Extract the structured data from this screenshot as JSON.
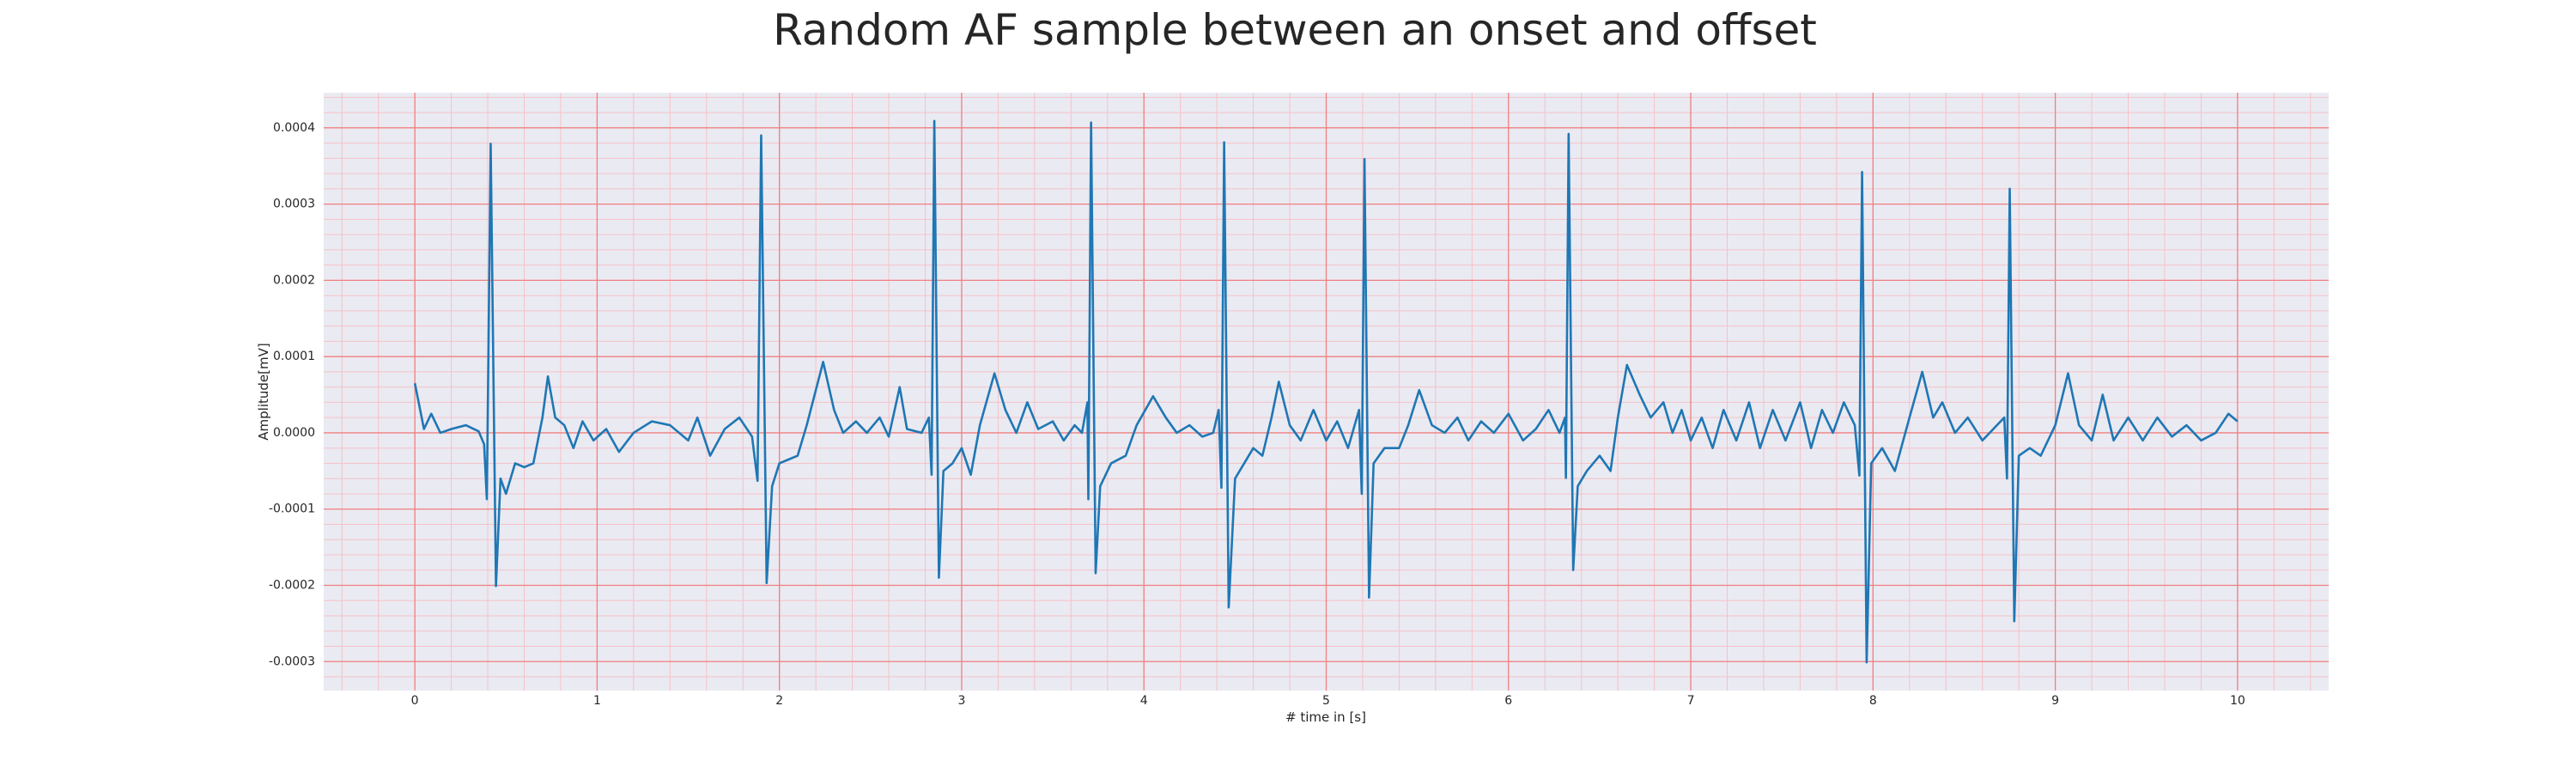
{
  "chart_data": {
    "type": "line",
    "title": "Random AF sample between an onset and offset",
    "xlabel": "# time in [s]",
    "ylabel": "Amplitude[mV]",
    "color": "#1f77b4",
    "background": "#eaeaf2",
    "grid": true,
    "grid_color": "#f08080",
    "minor_grid_color": "#f6c2c8",
    "minor_divisions": 5,
    "xlim": [
      -0.5,
      10.5
    ],
    "ylim": [
      -0.000338,
      0.000446
    ],
    "xticks": [
      0,
      1,
      2,
      3,
      4,
      5,
      6,
      7,
      8,
      9,
      10
    ],
    "yticks": [
      -0.0003,
      -0.0002,
      -0.0001,
      {
        "value": 0,
        "label": "0.0000"
      },
      0.0001,
      0.0002,
      0.0003,
      0.0004
    ],
    "x": [
      0,
      0.05,
      0.09,
      0.14,
      0.2,
      0.28,
      0.35,
      0.38,
      0.395,
      0.416,
      0.445,
      0.47,
      0.5,
      0.55,
      0.6,
      0.65,
      0.7,
      0.73,
      0.77,
      0.82,
      0.87,
      0.92,
      0.98,
      1.05,
      1.12,
      1.2,
      1.3,
      1.4,
      1.5,
      1.55,
      1.62,
      1.7,
      1.78,
      1.85,
      1.88,
      1.9,
      1.93,
      1.96,
      2.0,
      2.05,
      2.1,
      2.15,
      2.24,
      2.3,
      2.35,
      2.42,
      2.48,
      2.55,
      2.6,
      2.66,
      2.7,
      2.78,
      2.82,
      2.835,
      2.85,
      2.875,
      2.9,
      2.95,
      3.0,
      3.05,
      3.1,
      3.18,
      3.24,
      3.3,
      3.36,
      3.42,
      3.5,
      3.56,
      3.62,
      3.66,
      3.69,
      3.695,
      3.71,
      3.735,
      3.76,
      3.82,
      3.9,
      3.96,
      4.05,
      4.12,
      4.18,
      4.25,
      4.32,
      4.38,
      4.41,
      4.425,
      4.44,
      4.465,
      4.5,
      4.55,
      4.6,
      4.65,
      4.7,
      4.74,
      4.8,
      4.86,
      4.93,
      5.0,
      5.06,
      5.12,
      5.18,
      5.195,
      5.21,
      5.235,
      5.26,
      5.32,
      5.4,
      5.45,
      5.51,
      5.58,
      5.65,
      5.72,
      5.78,
      5.85,
      5.92,
      6.0,
      6.08,
      6.15,
      6.22,
      6.28,
      6.31,
      6.315,
      6.33,
      6.355,
      6.38,
      6.43,
      6.5,
      6.56,
      6.6,
      6.65,
      6.72,
      6.78,
      6.85,
      6.9,
      6.95,
      7.0,
      7.06,
      7.12,
      7.18,
      7.25,
      7.32,
      7.38,
      7.45,
      7.52,
      7.6,
      7.66,
      7.72,
      7.78,
      7.84,
      7.9,
      7.925,
      7.94,
      7.965,
      7.99,
      8.05,
      8.12,
      8.2,
      8.27,
      8.33,
      8.38,
      8.45,
      8.52,
      8.6,
      8.66,
      8.72,
      8.735,
      8.75,
      8.775,
      8.8,
      8.86,
      8.92,
      9.0,
      9.07,
      9.13,
      9.2,
      9.26,
      9.32,
      9.4,
      9.48,
      9.56,
      9.64,
      9.72,
      9.8,
      9.88,
      9.95,
      10.0
    ],
    "values": [
      6.5e-05,
      5e-06,
      2.5e-05,
      0,
      5e-06,
      1e-05,
      2e-06,
      -1.5e-05,
      -8.7e-05,
      0.000379,
      -0.000201,
      -6e-05,
      -8e-05,
      -4e-05,
      -4.5e-05,
      -4e-05,
      2e-05,
      7.4e-05,
      2e-05,
      1e-05,
      -2e-05,
      1.5e-05,
      -1e-05,
      5e-06,
      -2.5e-05,
      0,
      1.5e-05,
      1e-05,
      -1e-05,
      2e-05,
      -3e-05,
      5e-06,
      2e-05,
      -5e-06,
      -6.3e-05,
      0.00039,
      -0.000197,
      -7e-05,
      -4e-05,
      -3.5e-05,
      -3e-05,
      1e-05,
      9.3e-05,
      3e-05,
      0,
      1.5e-05,
      0,
      2e-05,
      -5e-06,
      6e-05,
      5e-06,
      0,
      2e-05,
      -5.5e-05,
      0.000409,
      -0.00019,
      -5e-05,
      -4e-05,
      -2e-05,
      -5.5e-05,
      1e-05,
      7.8e-05,
      3e-05,
      0,
      4e-05,
      5e-06,
      1.5e-05,
      -1e-05,
      1e-05,
      0,
      4e-05,
      -8.7e-05,
      0.000407,
      -0.000184,
      -7e-05,
      -4e-05,
      -3e-05,
      1e-05,
      4.8e-05,
      2e-05,
      0,
      1e-05,
      -5e-06,
      0,
      3e-05,
      -7.2e-05,
      0.000381,
      -0.000229,
      -6e-05,
      -4e-05,
      -2e-05,
      -3e-05,
      2e-05,
      6.7e-05,
      1e-05,
      -1e-05,
      3e-05,
      -1e-05,
      1.5e-05,
      -2e-05,
      3e-05,
      -8e-05,
      0.000359,
      -0.000216,
      -4e-05,
      -2e-05,
      -2e-05,
      1e-05,
      5.6e-05,
      1e-05,
      0,
      2e-05,
      -1e-05,
      1.5e-05,
      0,
      2.5e-05,
      -1e-05,
      5e-06,
      3e-05,
      0,
      2e-05,
      -5.9e-05,
      0.000392,
      -0.00018,
      -7e-05,
      -5e-05,
      -3e-05,
      -5e-05,
      2e-05,
      8.9e-05,
      5e-05,
      2e-05,
      4e-05,
      0,
      3e-05,
      -1e-05,
      2e-05,
      -2e-05,
      3e-05,
      -1e-05,
      4e-05,
      -2e-05,
      3e-05,
      -1e-05,
      4e-05,
      -2e-05,
      3e-05,
      0,
      4e-05,
      1e-05,
      -5.6e-05,
      0.000342,
      -0.000301,
      -4e-05,
      -2e-05,
      -5e-05,
      2e-05,
      8e-05,
      2e-05,
      4e-05,
      0,
      2e-05,
      -1e-05,
      5e-06,
      2e-05,
      -6e-05,
      0.00032,
      -0.000247,
      -3e-05,
      -2e-05,
      -3e-05,
      1e-05,
      7.8e-05,
      1e-05,
      -1e-05,
      5e-05,
      -1e-05,
      2e-05,
      -1e-05,
      2e-05,
      -5e-06,
      1e-05,
      -1e-05,
      0,
      2.5e-05,
      1.5e-05
    ]
  }
}
